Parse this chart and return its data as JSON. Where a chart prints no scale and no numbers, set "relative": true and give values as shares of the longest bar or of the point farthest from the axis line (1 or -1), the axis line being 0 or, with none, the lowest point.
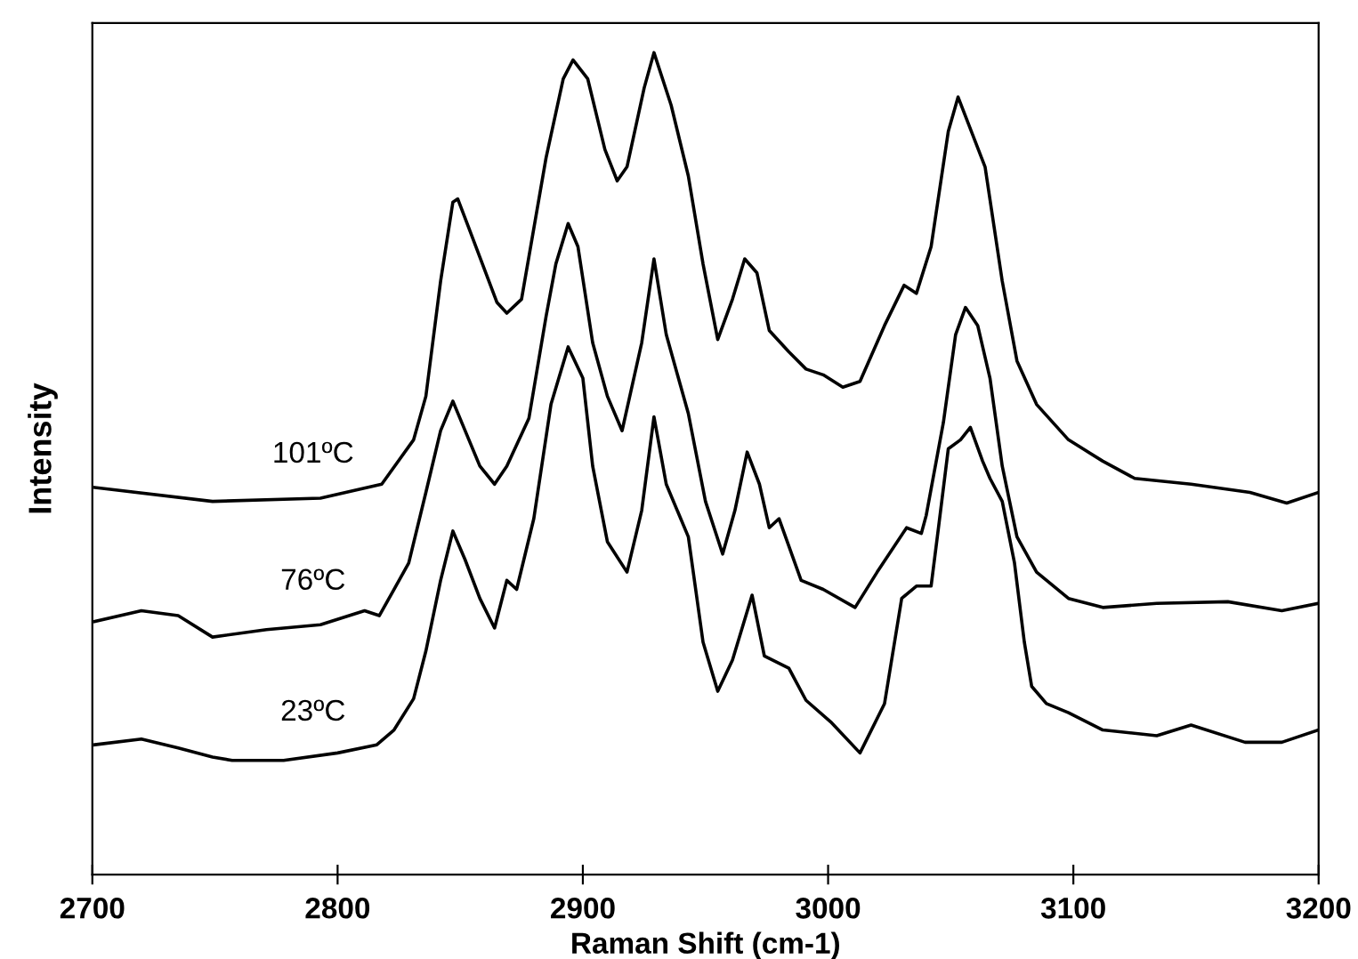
{
  "chart_data": {
    "type": "line",
    "xlabel": "Raman Shift (cm-1)",
    "ylabel": "Intensity",
    "relative": true,
    "legend": false,
    "grid": false,
    "marker": "none",
    "line_style": "solid",
    "tick_labels": "x",
    "xlim": [
      2700,
      3200
    ],
    "xticks": [
      2700,
      2800,
      2900,
      3000,
      3100,
      3200
    ],
    "series": [
      {
        "name": "101ºC",
        "color": "#000000",
        "x": [
          2701,
          2749,
          2793,
          2818,
          2831,
          2836,
          2842,
          2847,
          2849,
          2855,
          2865,
          2869,
          2875,
          2885,
          2892,
          2896,
          2902,
          2909,
          2914,
          2918,
          2925,
          2929,
          2936,
          2943,
          2949,
          2955,
          2961,
          2966,
          2971,
          2976,
          2984,
          2991,
          2998,
          3006,
          3013,
          3023,
          3031,
          3036,
          3042,
          3049,
          3053,
          3064,
          3071,
          3077,
          3085,
          3098,
          3112,
          3125,
          3148,
          3172,
          3187,
          3200
        ],
        "values": [
          0.471,
          0.454,
          0.458,
          0.475,
          0.529,
          0.582,
          0.722,
          0.818,
          0.822,
          0.775,
          0.696,
          0.683,
          0.7,
          0.872,
          0.968,
          0.991,
          0.968,
          0.882,
          0.844,
          0.861,
          0.957,
          1.0,
          0.936,
          0.85,
          0.743,
          0.651,
          0.7,
          0.749,
          0.732,
          0.662,
          0.636,
          0.615,
          0.608,
          0.593,
          0.6,
          0.668,
          0.717,
          0.707,
          0.764,
          0.904,
          0.946,
          0.861,
          0.722,
          0.625,
          0.572,
          0.529,
          0.503,
          0.482,
          0.475,
          0.465,
          0.452,
          0.465
        ]
      },
      {
        "name": "76ºC",
        "color": "#000000",
        "x": [
          2701,
          2720,
          2735,
          2749,
          2771,
          2793,
          2811,
          2817,
          2823,
          2829,
          2836,
          2842,
          2847,
          2852,
          2858,
          2864,
          2869,
          2878,
          2885,
          2889,
          2894,
          2898,
          2904,
          2910,
          2916,
          2924,
          2929,
          2934,
          2943,
          2950,
          2957,
          2962,
          2967,
          2972,
          2976,
          2980,
          2989,
          2998,
          3011,
          3020,
          3032,
          3038,
          3040,
          3047,
          3052,
          3056,
          3061,
          3066,
          3071,
          3077,
          3085,
          3098,
          3112,
          3134,
          3163,
          3185,
          3200
        ],
        "values": [
          0.308,
          0.321,
          0.315,
          0.289,
          0.298,
          0.304,
          0.321,
          0.315,
          0.347,
          0.379,
          0.465,
          0.54,
          0.576,
          0.54,
          0.497,
          0.475,
          0.497,
          0.555,
          0.679,
          0.743,
          0.792,
          0.764,
          0.647,
          0.582,
          0.54,
          0.647,
          0.749,
          0.657,
          0.561,
          0.454,
          0.39,
          0.443,
          0.514,
          0.475,
          0.422,
          0.433,
          0.358,
          0.347,
          0.325,
          0.368,
          0.422,
          0.415,
          0.437,
          0.55,
          0.657,
          0.69,
          0.668,
          0.604,
          0.497,
          0.411,
          0.368,
          0.336,
          0.325,
          0.33,
          0.332,
          0.321,
          0.33
        ]
      },
      {
        "name": "23ºC",
        "color": "#000000",
        "x": [
          2701,
          2720,
          2735,
          2749,
          2757,
          2778,
          2800,
          2816,
          2823,
          2831,
          2836,
          2842,
          2847,
          2852,
          2858,
          2864,
          2869,
          2873,
          2880,
          2887,
          2894,
          2900,
          2904,
          2910,
          2918,
          2924,
          2929,
          2934,
          2943,
          2949,
          2955,
          2961,
          2969,
          2974,
          2984,
          2991,
          3001,
          3013,
          3023,
          3030,
          3036,
          3042,
          3045,
          3049,
          3054,
          3058,
          3063,
          3066,
          3071,
          3076,
          3080,
          3083,
          3089,
          3098,
          3112,
          3134,
          3148,
          3170,
          3185,
          3200
        ],
        "values": [
          0.158,
          0.165,
          0.154,
          0.143,
          0.139,
          0.139,
          0.148,
          0.158,
          0.176,
          0.214,
          0.272,
          0.358,
          0.418,
          0.383,
          0.336,
          0.3,
          0.358,
          0.347,
          0.433,
          0.572,
          0.642,
          0.604,
          0.497,
          0.405,
          0.368,
          0.443,
          0.557,
          0.475,
          0.411,
          0.283,
          0.223,
          0.261,
          0.34,
          0.266,
          0.251,
          0.212,
          0.186,
          0.148,
          0.208,
          0.336,
          0.351,
          0.351,
          0.422,
          0.518,
          0.529,
          0.544,
          0.503,
          0.482,
          0.454,
          0.379,
          0.283,
          0.229,
          0.208,
          0.197,
          0.176,
          0.169,
          0.182,
          0.161,
          0.161,
          0.176
        ]
      }
    ]
  }
}
